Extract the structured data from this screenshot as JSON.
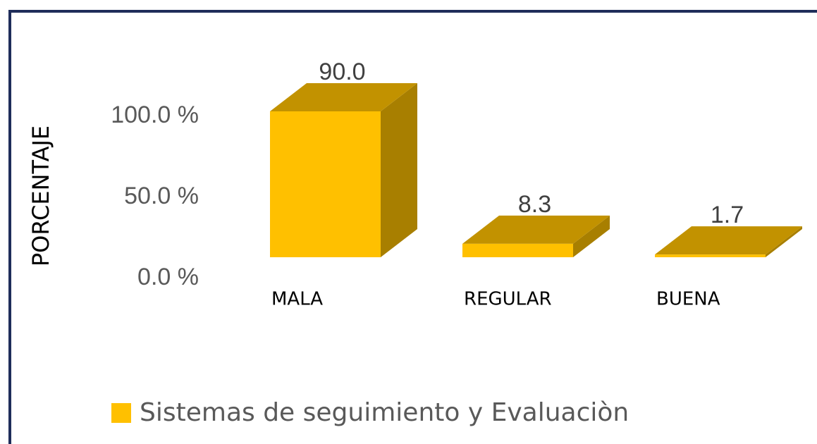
{
  "chart_data": {
    "type": "bar3d",
    "y_label": "PORCENTAJE",
    "categories": [
      "MALA",
      "REGULAR",
      "BUENA"
    ],
    "series": [
      {
        "name": "Sistemas de seguimiento y Evaluaciòn",
        "color": "#ffc000",
        "values": [
          90,
          8.3,
          1.7
        ],
        "value_labels": [
          "90.0",
          "8.3",
          "1.7"
        ]
      }
    ],
    "ylim": [
      0,
      100
    ],
    "yticks": [
      {
        "value": 0,
        "label": "0.0 %"
      },
      {
        "value": 50,
        "label": "50.0 %"
      },
      {
        "value": 100,
        "label": "100.0 %"
      }
    ],
    "grid": false
  }
}
